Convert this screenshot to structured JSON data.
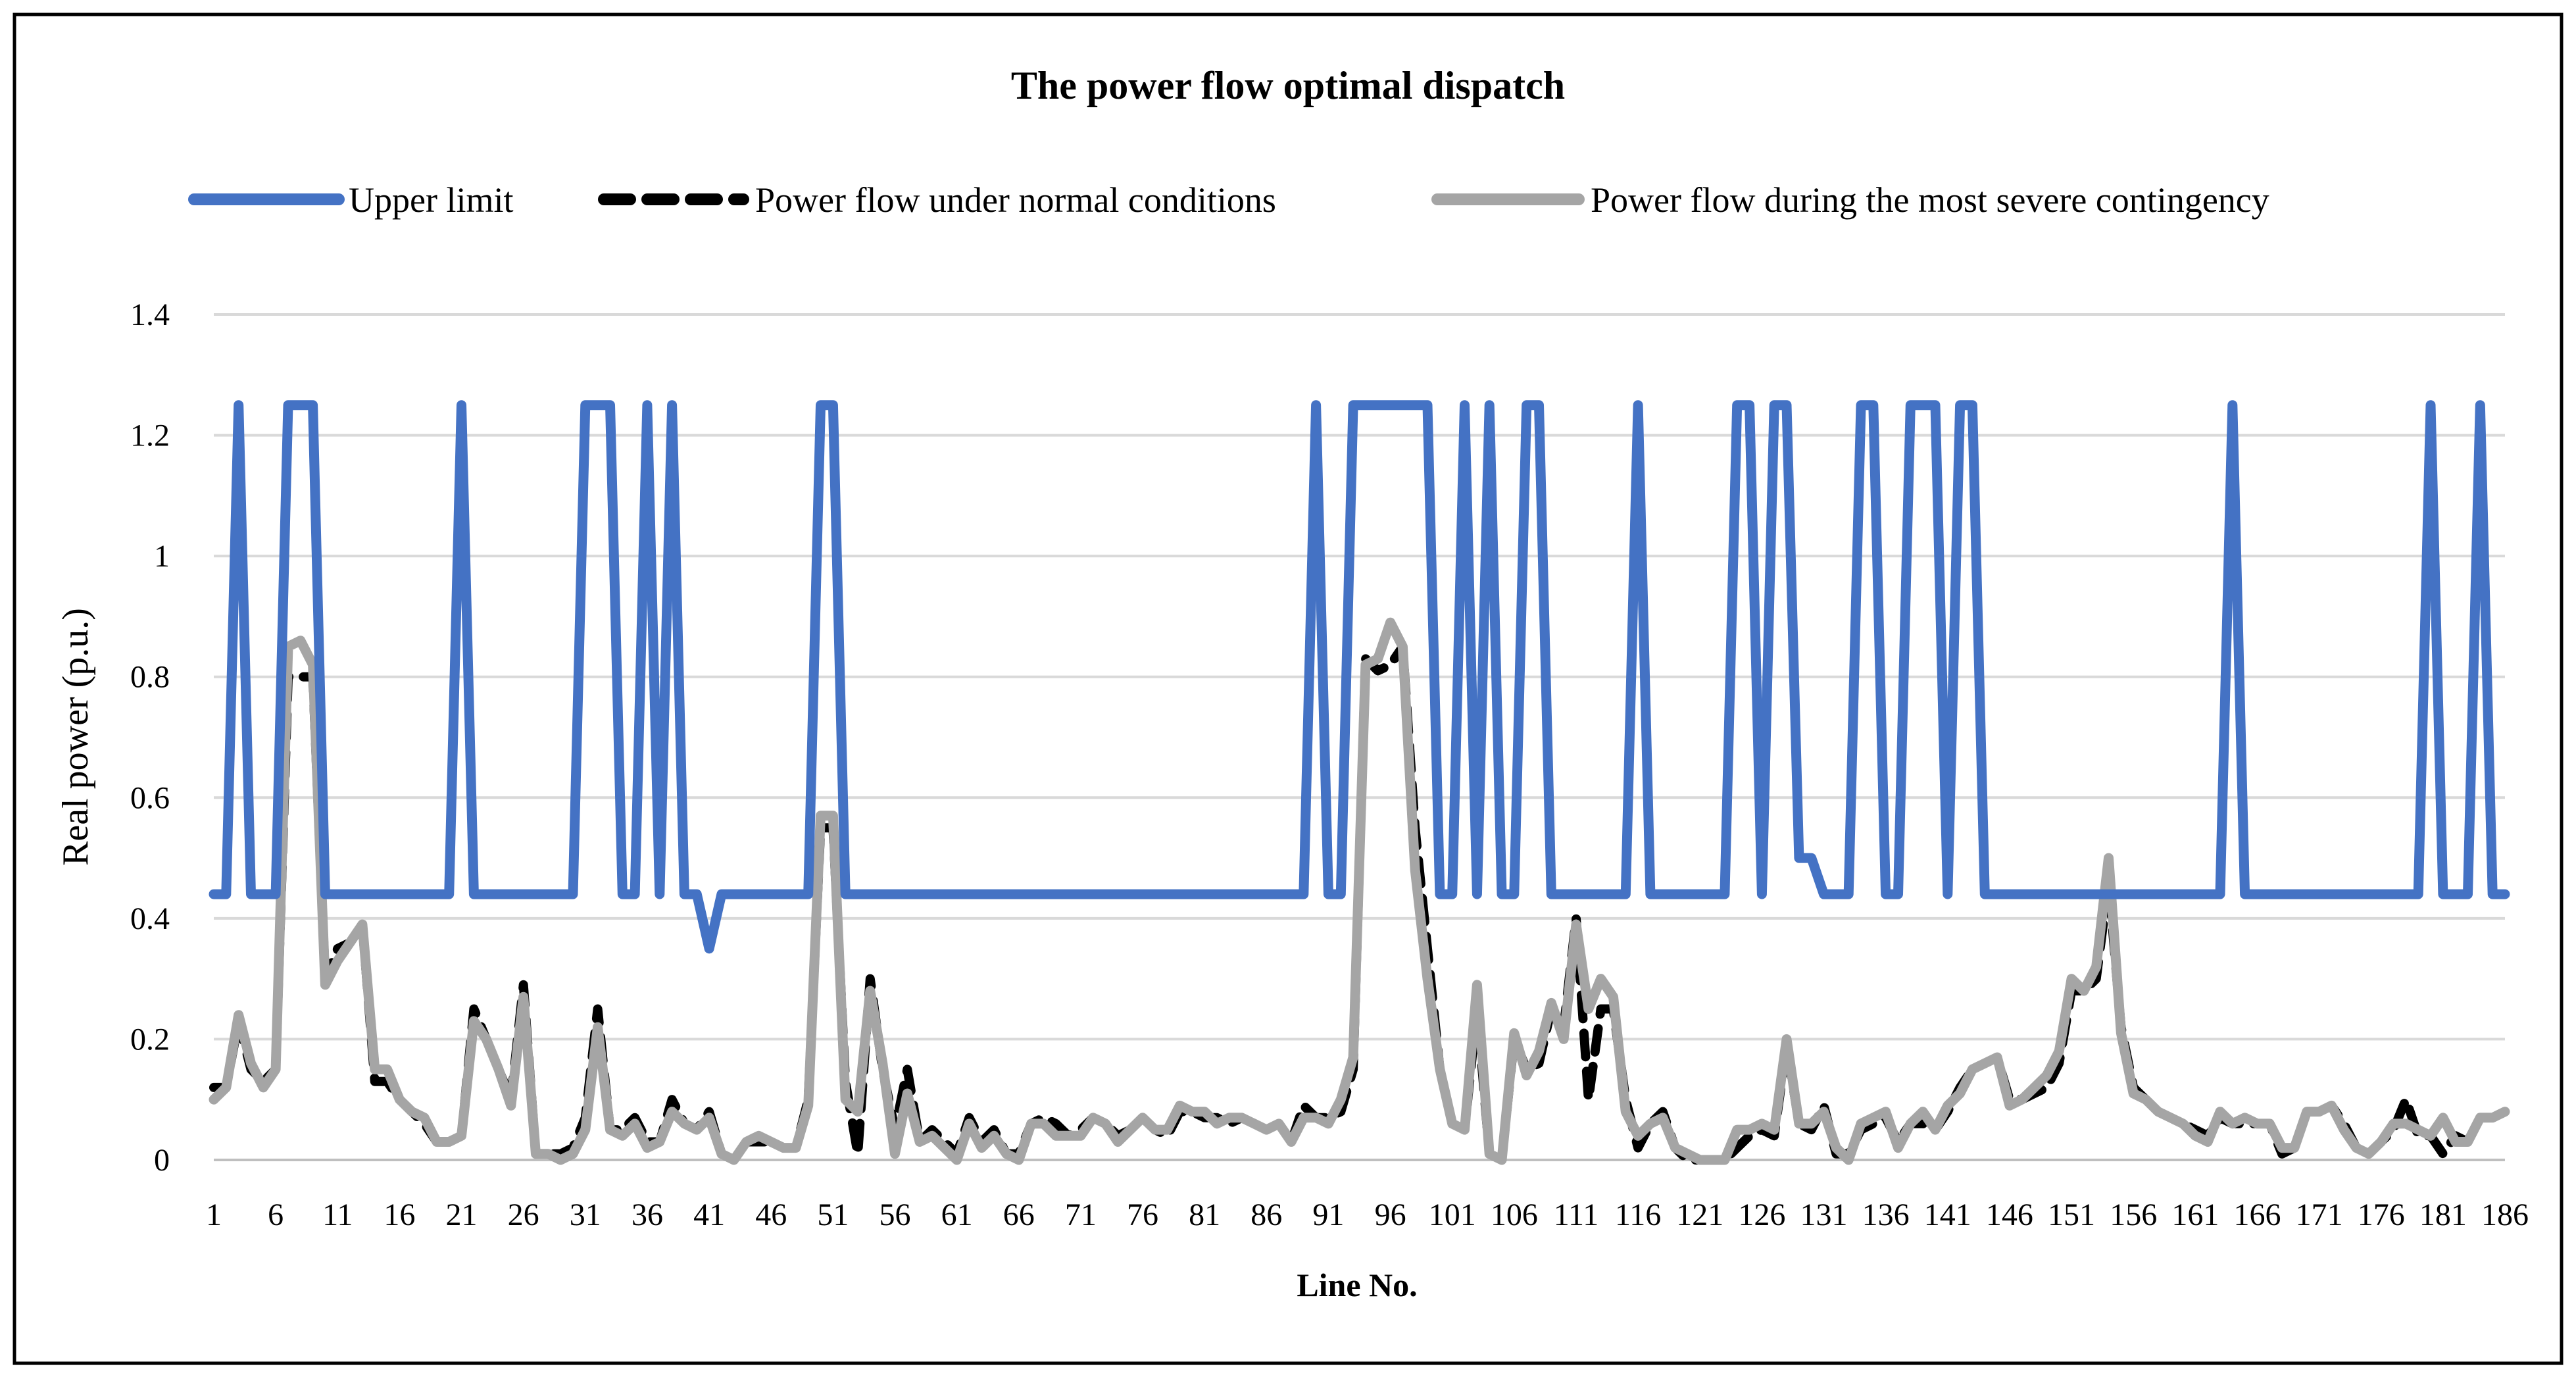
{
  "chart_data": {
    "type": "line",
    "title": "The power flow optimal dispatch",
    "xlabel": "Line No.",
    "ylabel": "Real power (p.u.)",
    "ylim": [
      0,
      1.4
    ],
    "yticks": [
      "0",
      "0.2",
      "0.4",
      "0.6",
      "0.8",
      "1",
      "1.2",
      "1.4"
    ],
    "ytick_values": [
      0,
      0.2,
      0.4,
      0.6,
      0.8,
      1,
      1.2,
      1.4
    ],
    "xticks": [
      "1",
      "6",
      "11",
      "16",
      "21",
      "26",
      "31",
      "36",
      "41",
      "46",
      "51",
      "56",
      "61",
      "66",
      "71",
      "76",
      "81",
      "86",
      "91",
      "96",
      "101",
      "106",
      "111",
      "116",
      "121",
      "126",
      "131",
      "136",
      "141",
      "146",
      "151",
      "156",
      "161",
      "166",
      "171",
      "176",
      "181",
      "186"
    ],
    "x_count": 186,
    "grid": true,
    "legend_position": "top",
    "colors": {
      "upper": "#4472C4",
      "normal": "#000000",
      "contingency": "#A5A5A5",
      "grid": "#D9D9D9"
    },
    "series": [
      {
        "name": "Upper limit",
        "values": [
          0.44,
          0.44,
          1.25,
          0.44,
          0.44,
          0.44,
          1.25,
          1.25,
          1.25,
          0.44,
          0.44,
          0.44,
          0.44,
          0.44,
          0.44,
          0.44,
          0.44,
          0.44,
          0.44,
          0.44,
          1.25,
          0.44,
          0.44,
          0.44,
          0.44,
          0.44,
          0.44,
          0.44,
          0.44,
          0.44,
          1.25,
          1.25,
          1.25,
          0.44,
          0.44,
          1.25,
          0.44,
          1.25,
          0.44,
          0.44,
          0.35,
          0.44,
          0.44,
          0.44,
          0.44,
          0.44,
          0.44,
          0.44,
          0.44,
          1.25,
          1.25,
          0.44,
          0.44,
          0.44,
          0.44,
          0.44,
          0.44,
          0.44,
          0.44,
          0.44,
          0.44,
          0.44,
          0.44,
          0.44,
          0.44,
          0.44,
          0.44,
          0.44,
          0.44,
          0.44,
          0.44,
          0.44,
          0.44,
          0.44,
          0.44,
          0.44,
          0.44,
          0.44,
          0.44,
          0.44,
          0.44,
          0.44,
          0.44,
          0.44,
          0.44,
          0.44,
          0.44,
          0.44,
          0.44,
          1.25,
          0.44,
          0.44,
          1.25,
          1.25,
          1.25,
          1.25,
          1.25,
          1.25,
          1.25,
          0.44,
          0.44,
          1.25,
          0.44,
          1.25,
          0.44,
          0.44,
          1.25,
          1.25,
          0.44,
          0.44,
          0.44,
          0.44,
          0.44,
          0.44,
          0.44,
          1.25,
          0.44,
          0.44,
          0.44,
          0.44,
          0.44,
          0.44,
          0.44,
          1.25,
          1.25,
          0.44,
          1.25,
          1.25,
          0.5,
          0.5,
          0.44,
          0.44,
          0.44,
          1.25,
          1.25,
          0.44,
          0.44,
          1.25,
          1.25,
          1.25,
          0.44,
          1.25,
          1.25,
          0.44,
          0.44,
          0.44,
          0.44,
          0.44,
          0.44,
          0.44,
          0.44,
          0.44,
          0.44,
          0.44,
          0.44,
          0.44,
          0.44,
          0.44,
          0.44,
          0.44,
          0.44,
          0.44,
          0.44,
          1.25,
          0.44,
          0.44,
          0.44,
          0.44,
          0.44,
          0.44,
          0.44,
          0.44,
          0.44,
          0.44,
          0.44,
          0.44,
          0.44,
          0.44,
          0.44,
          1.25,
          0.44,
          0.44,
          0.44,
          1.25,
          0.44,
          0.44
        ]
      },
      {
        "name": "Power flow under normal conditions",
        "values": [
          0.12,
          0.12,
          0.23,
          0.15,
          0.13,
          0.15,
          0.8,
          0.8,
          0.8,
          0.3,
          0.35,
          0.36,
          0.39,
          0.13,
          0.13,
          0.1,
          0.08,
          0.06,
          0.03,
          0.03,
          0.04,
          0.25,
          0.2,
          0.15,
          0.1,
          0.29,
          0.01,
          0.01,
          0.01,
          0.02,
          0.07,
          0.25,
          0.05,
          0.05,
          0.07,
          0.03,
          0.03,
          0.1,
          0.06,
          0.05,
          0.08,
          0.01,
          0.0,
          0.03,
          0.03,
          0.03,
          0.02,
          0.02,
          0.1,
          0.55,
          0.55,
          0.13,
          0.01,
          0.3,
          0.15,
          0.05,
          0.15,
          0.03,
          0.05,
          0.03,
          0.01,
          0.07,
          0.03,
          0.05,
          0.01,
          0.01,
          0.06,
          0.07,
          0.06,
          0.04,
          0.05,
          0.07,
          0.06,
          0.04,
          0.05,
          0.07,
          0.05,
          0.04,
          0.08,
          0.08,
          0.07,
          0.07,
          0.06,
          0.07,
          0.06,
          0.05,
          0.06,
          0.03,
          0.09,
          0.07,
          0.07,
          0.08,
          0.15,
          0.83,
          0.81,
          0.82,
          0.85,
          0.55,
          0.35,
          0.15,
          0.06,
          0.05,
          0.25,
          0.01,
          0.0,
          0.2,
          0.15,
          0.16,
          0.25,
          0.22,
          0.4,
          0.1,
          0.25,
          0.25,
          0.1,
          0.02,
          0.06,
          0.08,
          0.02,
          0.0,
          0.0,
          0.0,
          0.0,
          0.02,
          0.04,
          0.05,
          0.04,
          0.19,
          0.06,
          0.05,
          0.09,
          0.01,
          0.01,
          0.05,
          0.06,
          0.07,
          0.03,
          0.06,
          0.06,
          0.05,
          0.08,
          0.12,
          0.15,
          0.16,
          0.17,
          0.1,
          0.1,
          0.11,
          0.12,
          0.16,
          0.28,
          0.28,
          0.3,
          0.46,
          0.22,
          0.12,
          0.1,
          0.08,
          0.07,
          0.06,
          0.05,
          0.04,
          0.07,
          0.06,
          0.06,
          0.06,
          0.06,
          0.01,
          0.02,
          0.08,
          0.08,
          0.09,
          0.06,
          0.02,
          0.01,
          0.03,
          0.05,
          0.1,
          0.04,
          0.04,
          0.01,
          0.04,
          0.03,
          0.07,
          0.07,
          0.08
        ]
      },
      {
        "name": "Power flow during the most severe contingency",
        "values": [
          0.1,
          0.12,
          0.24,
          0.16,
          0.12,
          0.15,
          0.85,
          0.86,
          0.82,
          0.29,
          0.33,
          0.36,
          0.39,
          0.15,
          0.15,
          0.1,
          0.08,
          0.07,
          0.03,
          0.03,
          0.04,
          0.23,
          0.2,
          0.15,
          0.09,
          0.27,
          0.01,
          0.01,
          0.0,
          0.01,
          0.05,
          0.22,
          0.05,
          0.04,
          0.06,
          0.02,
          0.03,
          0.08,
          0.06,
          0.05,
          0.07,
          0.01,
          0.0,
          0.03,
          0.04,
          0.03,
          0.02,
          0.02,
          0.09,
          0.57,
          0.57,
          0.1,
          0.08,
          0.28,
          0.16,
          0.01,
          0.11,
          0.03,
          0.04,
          0.02,
          0.0,
          0.06,
          0.02,
          0.04,
          0.01,
          0.0,
          0.06,
          0.06,
          0.04,
          0.04,
          0.04,
          0.07,
          0.06,
          0.03,
          0.05,
          0.07,
          0.05,
          0.05,
          0.09,
          0.08,
          0.08,
          0.06,
          0.07,
          0.07,
          0.06,
          0.05,
          0.06,
          0.03,
          0.07,
          0.07,
          0.06,
          0.1,
          0.17,
          0.82,
          0.83,
          0.89,
          0.85,
          0.48,
          0.3,
          0.15,
          0.06,
          0.05,
          0.29,
          0.01,
          0.0,
          0.21,
          0.14,
          0.18,
          0.26,
          0.2,
          0.39,
          0.25,
          0.3,
          0.27,
          0.08,
          0.04,
          0.06,
          0.07,
          0.02,
          0.01,
          0.0,
          0.0,
          0.0,
          0.05,
          0.05,
          0.06,
          0.05,
          0.2,
          0.06,
          0.06,
          0.08,
          0.02,
          0.0,
          0.06,
          0.07,
          0.08,
          0.02,
          0.06,
          0.08,
          0.05,
          0.09,
          0.11,
          0.15,
          0.16,
          0.17,
          0.09,
          0.1,
          0.12,
          0.14,
          0.18,
          0.3,
          0.28,
          0.32,
          0.5,
          0.21,
          0.11,
          0.1,
          0.08,
          0.07,
          0.06,
          0.04,
          0.03,
          0.08,
          0.06,
          0.07,
          0.06,
          0.06,
          0.02,
          0.02,
          0.08,
          0.08,
          0.09,
          0.05,
          0.02,
          0.01,
          0.03,
          0.06,
          0.06,
          0.05,
          0.04,
          0.07,
          0.03,
          0.03,
          0.07,
          0.07,
          0.08
        ]
      }
    ]
  }
}
